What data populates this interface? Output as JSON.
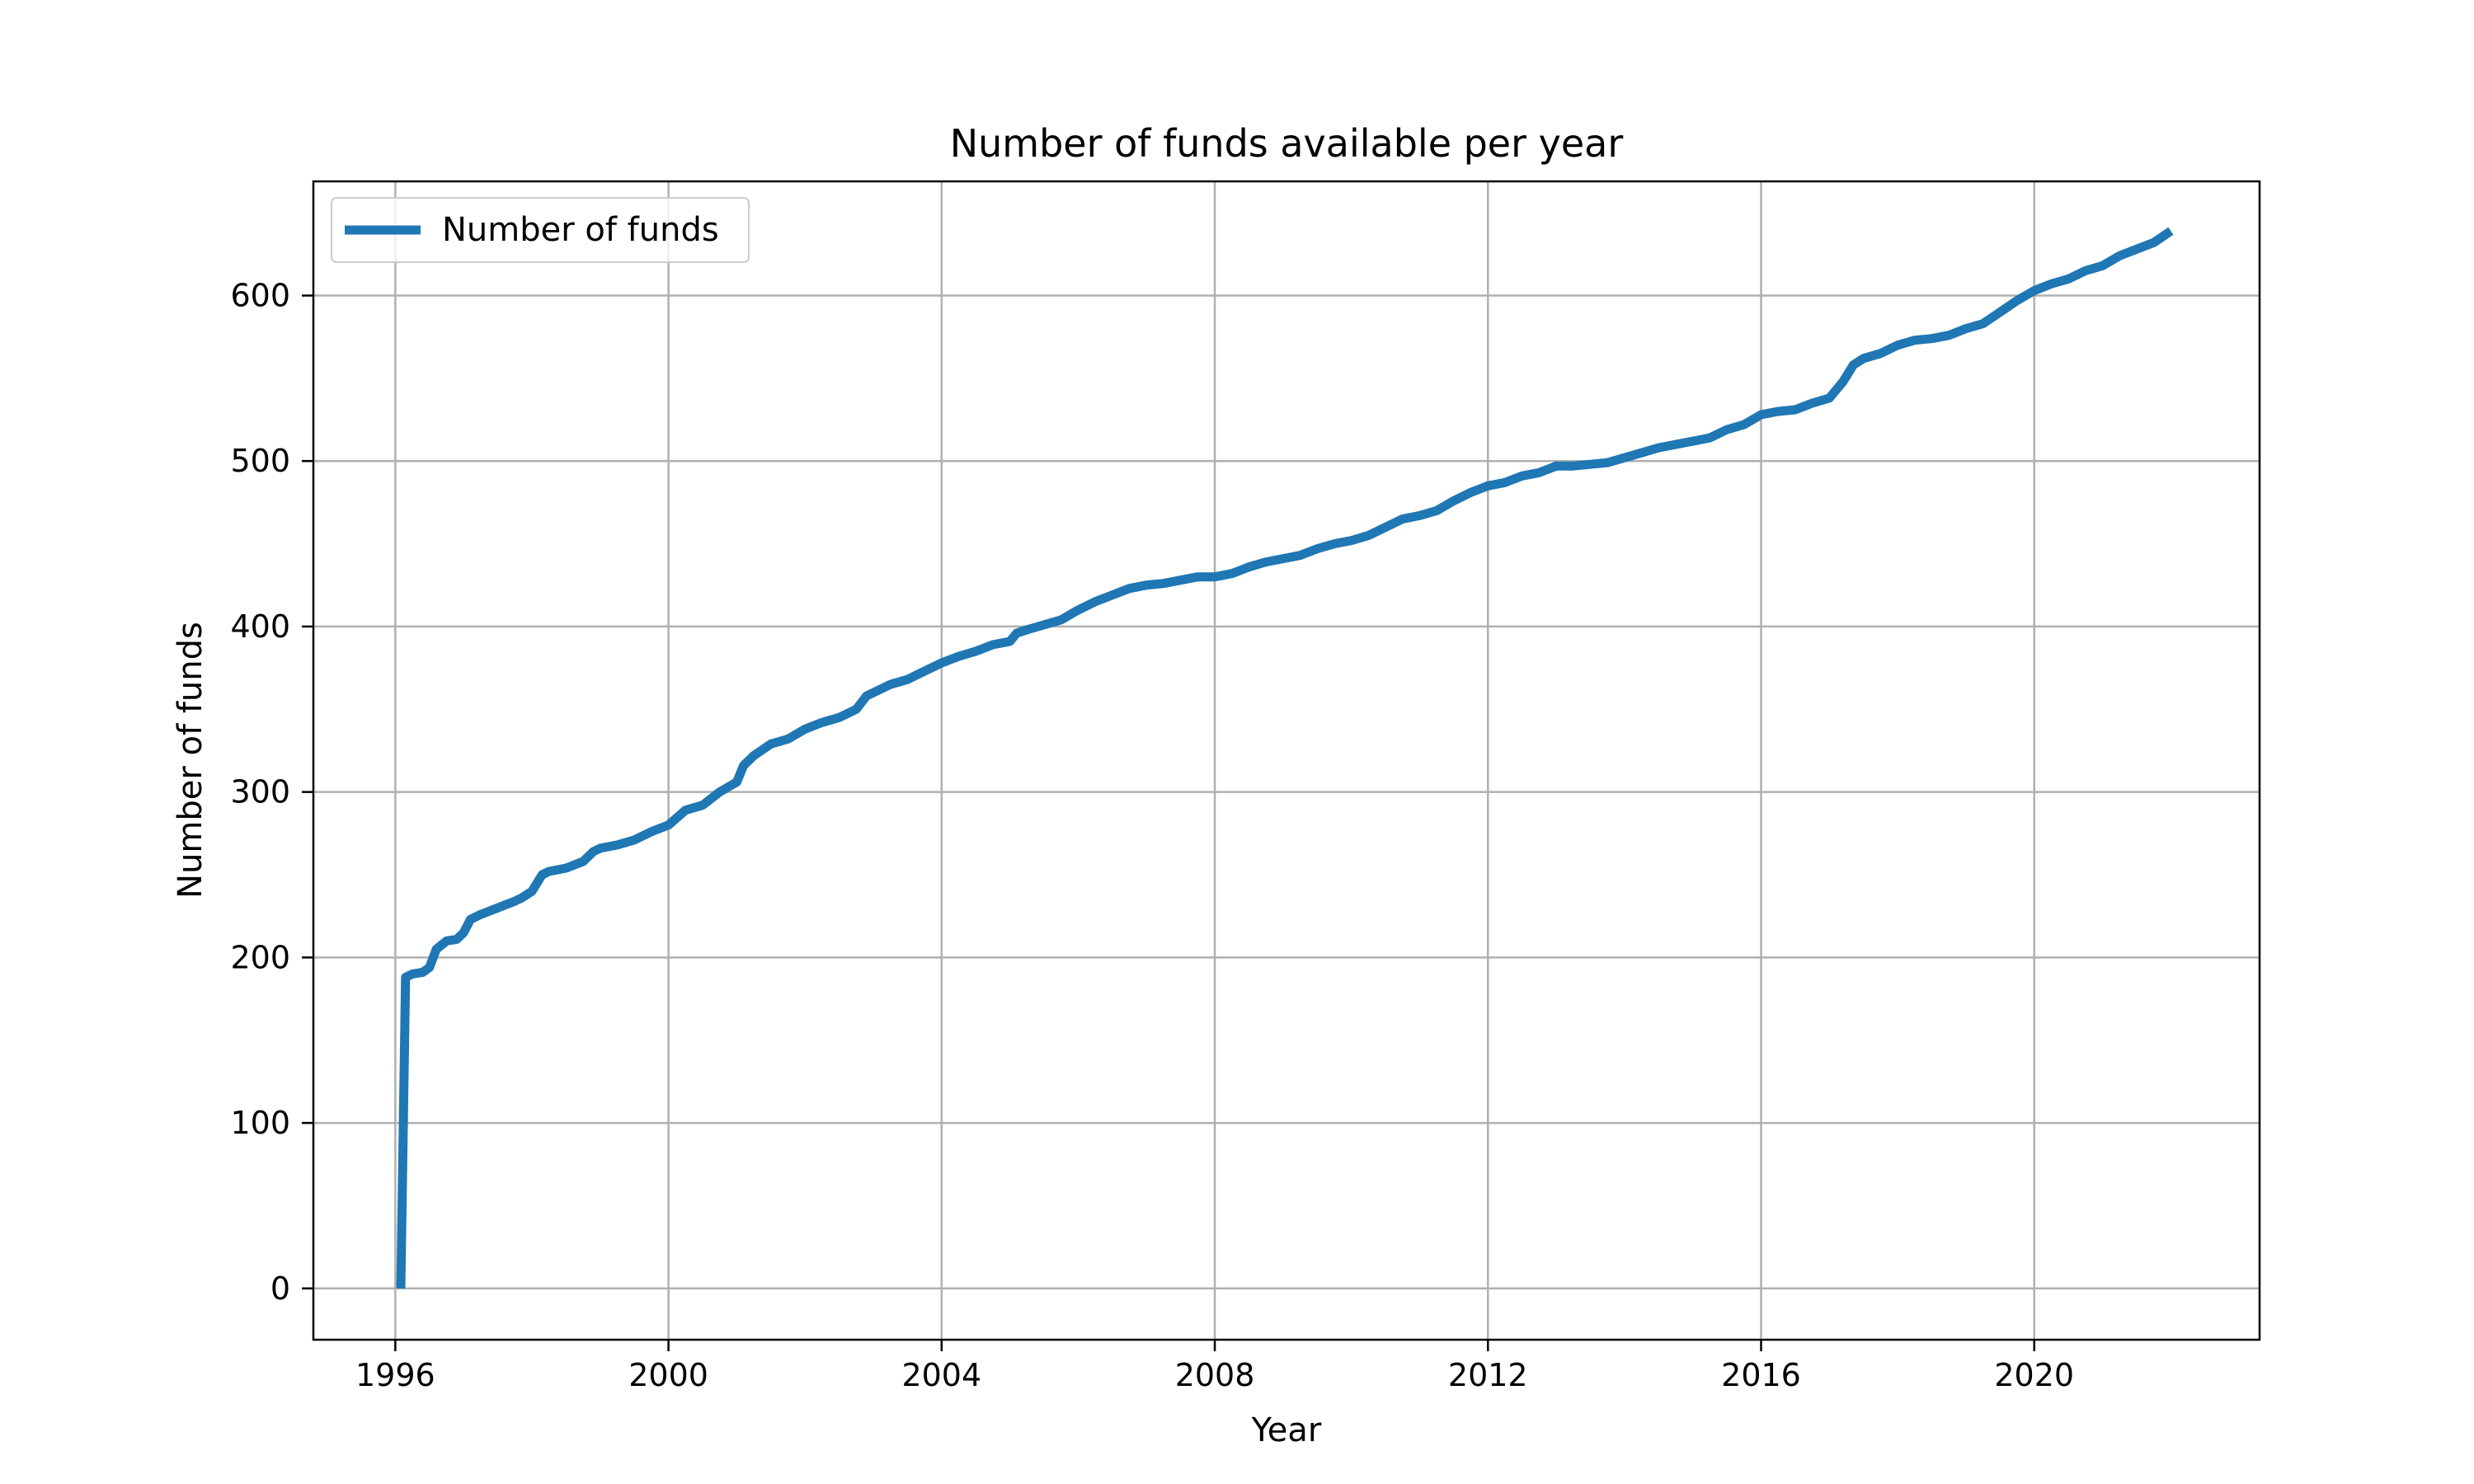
{
  "chart_data": {
    "type": "line",
    "title": "Number of funds available per year",
    "xlabel": "Year",
    "ylabel": "Number of funds",
    "xlim": [
      1994.8,
      2023.3
    ],
    "ylim": [
      -31,
      669
    ],
    "xticks": [
      1996,
      2000,
      2004,
      2008,
      2012,
      2016,
      2020
    ],
    "yticks": [
      0,
      100,
      200,
      300,
      400,
      500,
      600
    ],
    "grid": true,
    "legend": {
      "position": "top-left",
      "entries": [
        "Number of funds"
      ]
    },
    "series": [
      {
        "name": "Number of funds",
        "color": "#1f77b4",
        "x": [
          1996.08,
          1996.15,
          1996.25,
          1996.4,
          1996.5,
          1996.6,
          1996.75,
          1996.9,
          1997.0,
          1997.1,
          1997.25,
          1997.5,
          1997.75,
          1997.85,
          1998.0,
          1998.15,
          1998.25,
          1998.5,
          1998.75,
          1998.9,
          1999.0,
          1999.25,
          1999.5,
          1999.75,
          2000.0,
          2000.25,
          2000.5,
          2000.75,
          2001.0,
          2001.1,
          2001.25,
          2001.5,
          2001.75,
          2002.0,
          2002.25,
          2002.5,
          2002.75,
          2002.9,
          2003.0,
          2003.25,
          2003.5,
          2003.75,
          2004.0,
          2004.25,
          2004.5,
          2004.75,
          2005.0,
          2005.1,
          2005.25,
          2005.5,
          2005.75,
          2006.0,
          2006.25,
          2006.5,
          2006.75,
          2007.0,
          2007.25,
          2007.5,
          2007.75,
          2008.0,
          2008.25,
          2008.5,
          2008.75,
          2009.0,
          2009.25,
          2009.5,
          2009.75,
          2010.0,
          2010.25,
          2010.5,
          2010.75,
          2011.0,
          2011.25,
          2011.5,
          2011.75,
          2012.0,
          2012.25,
          2012.5,
          2012.75,
          2013.0,
          2013.25,
          2013.5,
          2013.75,
          2014.0,
          2014.25,
          2014.5,
          2014.75,
          2015.0,
          2015.25,
          2015.5,
          2015.75,
          2016.0,
          2016.25,
          2016.5,
          2016.75,
          2017.0,
          2017.2,
          2017.35,
          2017.5,
          2017.75,
          2018.0,
          2018.25,
          2018.5,
          2018.75,
          2019.0,
          2019.25,
          2019.5,
          2019.75,
          2020.0,
          2020.25,
          2020.5,
          2020.75,
          2021.0,
          2021.25,
          2021.5,
          2021.75,
          2022.0
        ],
        "y": [
          0,
          188,
          190,
          191,
          194,
          205,
          210,
          211,
          215,
          223,
          226,
          230,
          234,
          236,
          240,
          250,
          252,
          254,
          258,
          264,
          266,
          268,
          271,
          276,
          280,
          289,
          292,
          300,
          306,
          316,
          322,
          329,
          332,
          338,
          342,
          345,
          350,
          358,
          360,
          365,
          368,
          373,
          378,
          382,
          385,
          389,
          391,
          396,
          398,
          401,
          404,
          410,
          415,
          419,
          423,
          425,
          426,
          428,
          430,
          430,
          432,
          436,
          439,
          441,
          443,
          447,
          450,
          452,
          455,
          460,
          465,
          467,
          470,
          476,
          481,
          485,
          487,
          491,
          493,
          497,
          497,
          498,
          499,
          502,
          505,
          508,
          510,
          512,
          514,
          519,
          522,
          528,
          530,
          531,
          535,
          538,
          548,
          558,
          562,
          565,
          570,
          573,
          574,
          576,
          580,
          583,
          590,
          597,
          603,
          607,
          610,
          615,
          618,
          624,
          628,
          632,
          639
        ]
      }
    ]
  }
}
